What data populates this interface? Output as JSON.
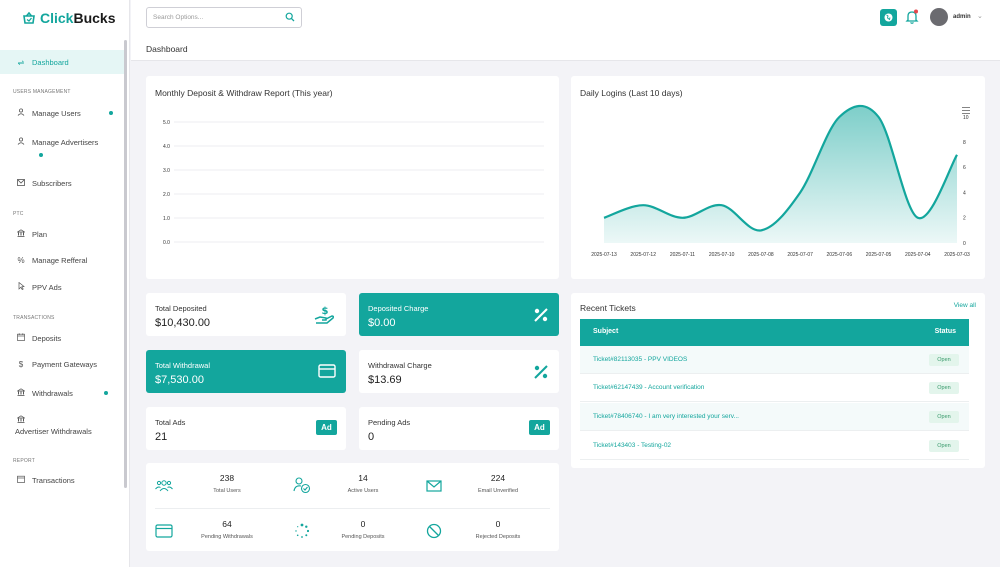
{
  "app": {
    "logo_prefix": "Click",
    "logo_suffix": "Bucks",
    "brand_color": "#13a69d"
  },
  "topbar": {
    "search_placeholder": "Search Options...",
    "user": "admin"
  },
  "page": {
    "title": "Dashboard"
  },
  "sidebar": {
    "dashboard": "Dashboard",
    "sections": {
      "users": "USERS MANAGEMENT",
      "ptc": "PTC",
      "transactions": "TRANSACTIONS",
      "report": "REPORT"
    },
    "items": {
      "manage_users": "Manage Users",
      "manage_advertisers": "Manage Advertisers",
      "subscribers": "Subscribers",
      "plan": "Plan",
      "manage_refferal": "Manage Refferal",
      "ppv_ads": "PPV Ads",
      "deposits": "Deposits",
      "payment_gateways": "Payment Gateways",
      "withdrawals": "Withdrawals",
      "advertiser_withdrawals": "Advertiser Withdrawals",
      "transactions": "Transactions"
    }
  },
  "deposit_report": {
    "title": "Monthly Deposit & Withdraw Report (This year)"
  },
  "logins": {
    "title": "Daily Logins (Last 10 days)"
  },
  "chart_data": [
    {
      "type": "line",
      "title": "Monthly Deposit & Withdraw Report (This year)",
      "y_ticks": [
        "5.0",
        "4.0",
        "3.0",
        "2.0",
        "1.0",
        "0.0"
      ],
      "ylim": [
        0,
        5
      ],
      "grid": true,
      "series": []
    },
    {
      "type": "area",
      "title": "Daily Logins (Last 10 days)",
      "x": [
        "2025-07-13",
        "2025-07-12",
        "2025-07-11",
        "2025-07-10",
        "2025-07-08",
        "2025-07-07",
        "2025-07-06",
        "2025-07-05",
        "2025-07-04",
        "2025-07-03"
      ],
      "y_ticks": [
        "10",
        "8",
        "6",
        "4",
        "2",
        "0"
      ],
      "ylim": [
        0,
        10
      ],
      "series": [
        {
          "values": [
            2,
            3,
            2,
            3,
            1,
            4,
            10,
            10,
            2,
            7
          ]
        }
      ],
      "color": "#13a69d"
    }
  ],
  "stats": {
    "total_deposited": {
      "label": "Total Deposited",
      "value": "$10,430.00"
    },
    "deposited_charge": {
      "label": "Deposited Charge",
      "value": "$0.00"
    },
    "total_withdrawal": {
      "label": "Total Withdrawal",
      "value": "$7,530.00"
    },
    "withdrawal_charge": {
      "label": "Withdrawal Charge",
      "value": "$13.69"
    },
    "total_ads": {
      "label": "Total Ads",
      "value": "21",
      "badge": "Ad"
    },
    "pending_ads": {
      "label": "Pending Ads",
      "value": "0",
      "badge": "Ad"
    }
  },
  "mini_stats": {
    "total_users": {
      "value": "238",
      "label": "Total Users"
    },
    "active_users": {
      "value": "14",
      "label": "Active Users"
    },
    "email_unverified": {
      "value": "224",
      "label": "Email Unverified"
    },
    "pending_withdrawals": {
      "value": "64",
      "label": "Pending Withdrawals"
    },
    "pending_deposits": {
      "value": "0",
      "label": "Pending Deposits"
    },
    "rejected_deposits": {
      "value": "0",
      "label": "Rejected Deposits"
    }
  },
  "tickets": {
    "title": "Recent Tickets",
    "view_all": "View all",
    "col_subject": "Subject",
    "col_status": "Status",
    "rows": [
      {
        "subject": "Ticket#82113035 - PPV VIDEOS",
        "status": "Open"
      },
      {
        "subject": "Ticket#62147439 - Account verification",
        "status": "Open"
      },
      {
        "subject": "Ticket#78406740 - I am very interested your serv...",
        "status": "Open"
      },
      {
        "subject": "Ticket#143403 - Testing-02",
        "status": "Open"
      }
    ]
  }
}
